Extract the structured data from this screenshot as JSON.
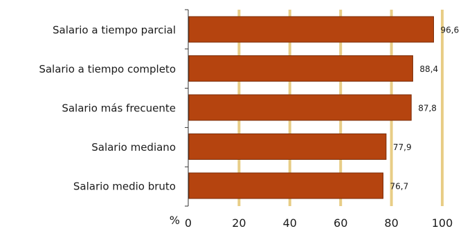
{
  "chart_data": {
    "type": "bar",
    "orientation": "horizontal",
    "title": "",
    "xlabel": "%",
    "ylabel": "",
    "xlim": [
      0,
      100
    ],
    "x_ticks": [
      0,
      20,
      40,
      60,
      80,
      100
    ],
    "grid": "vertical",
    "categories": [
      "Salario a tiempo parcial",
      "Salario a tiempo completo",
      "Salario más frecuente",
      "Salario mediano",
      "Salario medio bruto"
    ],
    "values": [
      96.6,
      88.4,
      87.8,
      77.9,
      76.7
    ],
    "value_labels": [
      "96,6",
      "88,4",
      "87,8",
      "77,9",
      "76,7"
    ],
    "colors": {
      "bar": "#b5440f",
      "bar_edge": "#7a2a05",
      "grid": "#e8cd86",
      "axis": "#333333"
    }
  }
}
